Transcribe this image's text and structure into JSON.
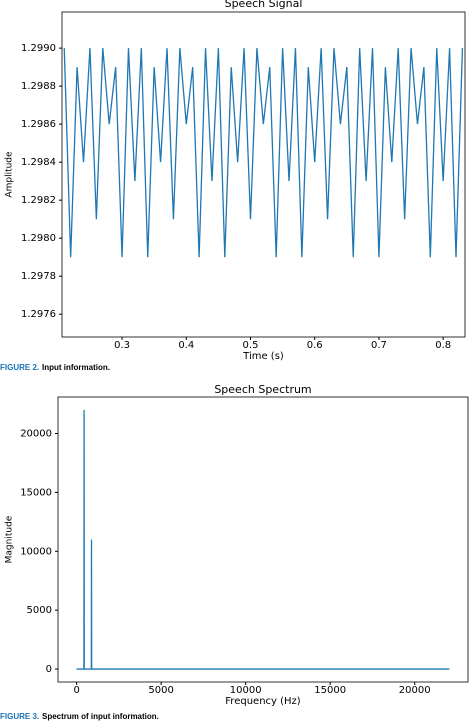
{
  "chart_data": [
    {
      "type": "line",
      "title": "Speech Signal",
      "x_label": "Time (s)",
      "y_label": "Amplitude",
      "x": [
        0.21,
        0.22,
        0.23,
        0.24,
        0.25,
        0.26,
        0.27,
        0.28,
        0.29,
        0.3,
        0.31,
        0.32,
        0.33,
        0.34,
        0.35,
        0.36,
        0.37,
        0.38,
        0.39,
        0.4,
        0.41,
        0.42,
        0.43,
        0.44,
        0.45,
        0.46,
        0.47,
        0.48,
        0.49,
        0.5,
        0.51,
        0.52,
        0.53,
        0.54,
        0.55,
        0.56,
        0.57,
        0.58,
        0.59,
        0.6,
        0.61,
        0.62,
        0.63,
        0.64,
        0.65,
        0.66,
        0.67,
        0.68,
        0.69,
        0.7,
        0.71,
        0.72,
        0.73,
        0.74,
        0.75,
        0.76,
        0.77,
        0.78,
        0.79,
        0.8,
        0.81,
        0.82,
        0.83
      ],
      "series": [
        {
          "color": "#1f77b4",
          "values": [
            1.299,
            1.2979,
            1.2989,
            1.2984,
            1.299,
            1.2981,
            1.299,
            1.2986,
            1.2989,
            1.2979,
            1.299,
            1.2983,
            1.299,
            1.2979,
            1.2989,
            1.2984,
            1.299,
            1.2981,
            1.299,
            1.2986,
            1.2989,
            1.2979,
            1.299,
            1.2983,
            1.299,
            1.2979,
            1.2989,
            1.2984,
            1.299,
            1.2981,
            1.299,
            1.2986,
            1.2989,
            1.2979,
            1.299,
            1.2983,
            1.299,
            1.2979,
            1.2989,
            1.2984,
            1.299,
            1.2981,
            1.299,
            1.2986,
            1.2989,
            1.2979,
            1.299,
            1.2983,
            1.299,
            1.2979,
            1.2989,
            1.2984,
            1.299,
            1.2981,
            1.299,
            1.2986,
            1.2989,
            1.2979,
            1.299,
            1.2983,
            1.299,
            1.2979,
            1.299
          ]
        }
      ],
      "xlim": [
        0.2065,
        0.834
      ],
      "xticks": [
        0.3,
        0.4,
        0.5,
        0.6,
        0.7,
        0.8
      ],
      "ylim": [
        1.29748,
        1.29919
      ],
      "yticks": [
        {
          "value": 1.2976,
          "label": "1.2976"
        },
        {
          "value": 1.2978,
          "label": "1.2978"
        },
        {
          "value": 1.298,
          "label": "1.2980"
        },
        {
          "value": 1.2982,
          "label": "1.2982"
        },
        {
          "value": 1.2984,
          "label": "1.2984"
        },
        {
          "value": 1.2986,
          "label": "1.2986"
        },
        {
          "value": 1.2988,
          "label": "1.2988"
        },
        {
          "value": 1.299,
          "label": "1.2990"
        }
      ]
    },
    {
      "type": "line",
      "title": "Speech Spectrum",
      "x_label": "Frequency (Hz)",
      "y_label": "Magnitude",
      "x": [
        0,
        430,
        440,
        450,
        870,
        880,
        890,
        22050
      ],
      "series": [
        {
          "color": "#1f77b4",
          "values": [
            0,
            0,
            22000,
            0,
            0,
            11000,
            0,
            0
          ]
        }
      ],
      "xlim": [
        -1102,
        23152
      ],
      "xticks": [
        0,
        5000,
        10000,
        15000,
        20000
      ],
      "ylim": [
        -1100,
        23100
      ],
      "yticks": [
        0,
        5000,
        10000,
        15000,
        20000
      ]
    }
  ],
  "captions": [
    {
      "label": "FIGURE 2.",
      "text": "Input information."
    },
    {
      "label": "FIGURE 3.",
      "text": "Spectrum of input information."
    }
  ]
}
